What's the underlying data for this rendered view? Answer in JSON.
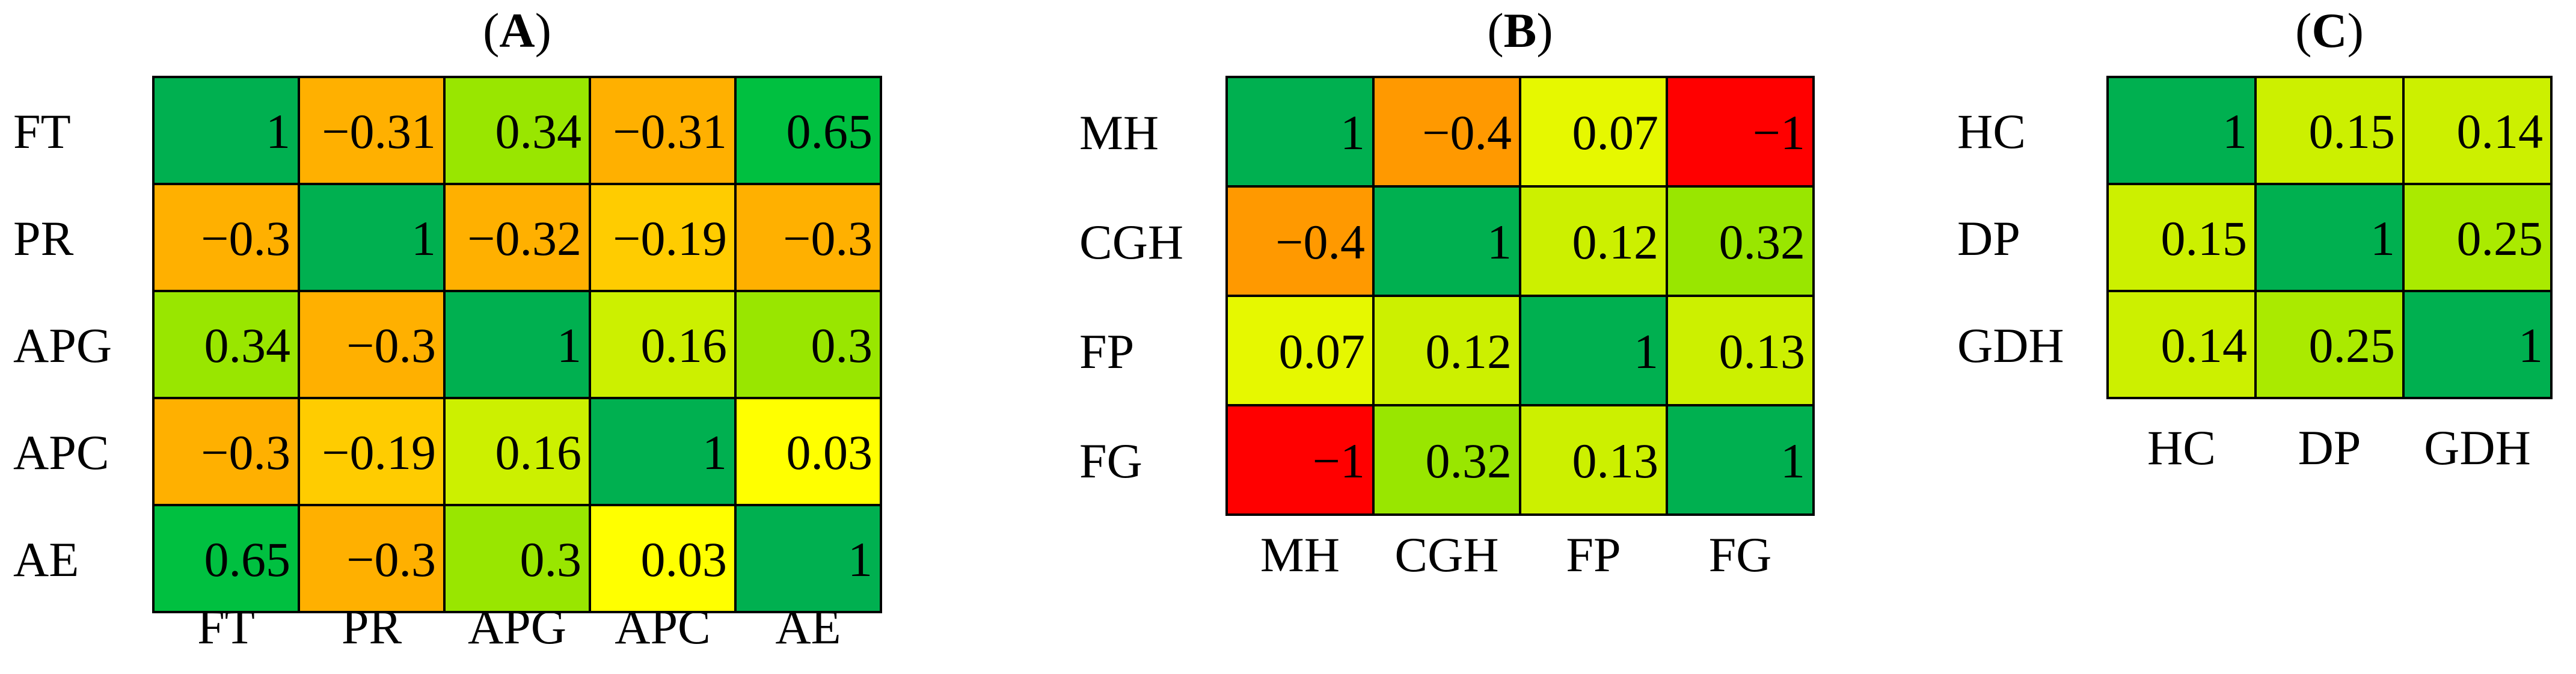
{
  "chart_data": [
    {
      "type": "heatmap",
      "title": "A",
      "row_labels": [
        "FT",
        "PR",
        "APG",
        "APC",
        "AE"
      ],
      "col_labels": [
        "FT",
        "PR",
        "APG",
        "APC",
        "AE"
      ],
      "cells": [
        [
          {
            "text": "1",
            "color": "#00b050"
          },
          {
            "text": "−0.31",
            "color": "#ffb000"
          },
          {
            "text": "0.34",
            "color": "#99e600"
          },
          {
            "text": "−0.31",
            "color": "#ffb000"
          },
          {
            "text": "0.65",
            "color": "#00c040"
          }
        ],
        [
          {
            "text": "−0.3",
            "color": "#ffb000"
          },
          {
            "text": "1",
            "color": "#00b050"
          },
          {
            "text": "−0.32",
            "color": "#ffb000"
          },
          {
            "text": "−0.19",
            "color": "#ffcc00"
          },
          {
            "text": "−0.3",
            "color": "#ffb000"
          }
        ],
        [
          {
            "text": "0.34",
            "color": "#99e600"
          },
          {
            "text": "−0.3",
            "color": "#ffb000"
          },
          {
            "text": "1",
            "color": "#00b050"
          },
          {
            "text": "0.16",
            "color": "#ccf000"
          },
          {
            "text": "0.3",
            "color": "#99e600"
          }
        ],
        [
          {
            "text": "−0.3",
            "color": "#ffb000"
          },
          {
            "text": "−0.19",
            "color": "#ffcc00"
          },
          {
            "text": "0.16",
            "color": "#ccf000"
          },
          {
            "text": "1",
            "color": "#00b050"
          },
          {
            "text": "0.03",
            "color": "#ffff00"
          }
        ],
        [
          {
            "text": "0.65",
            "color": "#00c040"
          },
          {
            "text": "−0.3",
            "color": "#ffb000"
          },
          {
            "text": "0.3",
            "color": "#99e600"
          },
          {
            "text": "0.03",
            "color": "#ffff00"
          },
          {
            "text": "1",
            "color": "#00b050"
          }
        ]
      ]
    },
    {
      "type": "heatmap",
      "title": "B",
      "row_labels": [
        "MH",
        "CGH",
        "FP",
        "FG"
      ],
      "col_labels": [
        "MH",
        "CGH",
        "FP",
        "FG"
      ],
      "cells": [
        [
          {
            "text": "1",
            "color": "#00b050"
          },
          {
            "text": "−0.4",
            "color": "#ff9900"
          },
          {
            "text": "0.07",
            "color": "#e6f800"
          },
          {
            "text": "−1",
            "color": "#ff0000"
          }
        ],
        [
          {
            "text": "−0.4",
            "color": "#ff9900"
          },
          {
            "text": "1",
            "color": "#00b050"
          },
          {
            "text": "0.12",
            "color": "#ccf000"
          },
          {
            "text": "0.32",
            "color": "#99e600"
          }
        ],
        [
          {
            "text": "0.07",
            "color": "#e6f800"
          },
          {
            "text": "0.12",
            "color": "#ccf000"
          },
          {
            "text": "1",
            "color": "#00b050"
          },
          {
            "text": "0.13",
            "color": "#ccf000"
          }
        ],
        [
          {
            "text": "−1",
            "color": "#ff0000"
          },
          {
            "text": "0.32",
            "color": "#99e600"
          },
          {
            "text": "0.13",
            "color": "#ccf000"
          },
          {
            "text": "1",
            "color": "#00b050"
          }
        ]
      ]
    },
    {
      "type": "heatmap",
      "title": "C",
      "row_labels": [
        "HC",
        "DP",
        "GDH"
      ],
      "col_labels": [
        "HC",
        "DP",
        "GDH"
      ],
      "cells": [
        [
          {
            "text": "1",
            "color": "#00b050"
          },
          {
            "text": "0.15",
            "color": "#ccf000"
          },
          {
            "text": "0.14",
            "color": "#ccf000"
          }
        ],
        [
          {
            "text": "0.15",
            "color": "#ccf000"
          },
          {
            "text": "1",
            "color": "#00b050"
          },
          {
            "text": "0.25",
            "color": "#aaea00"
          }
        ],
        [
          {
            "text": "0.14",
            "color": "#ccf000"
          },
          {
            "text": "0.25",
            "color": "#aaea00"
          },
          {
            "text": "1",
            "color": "#00b050"
          }
        ]
      ]
    }
  ]
}
